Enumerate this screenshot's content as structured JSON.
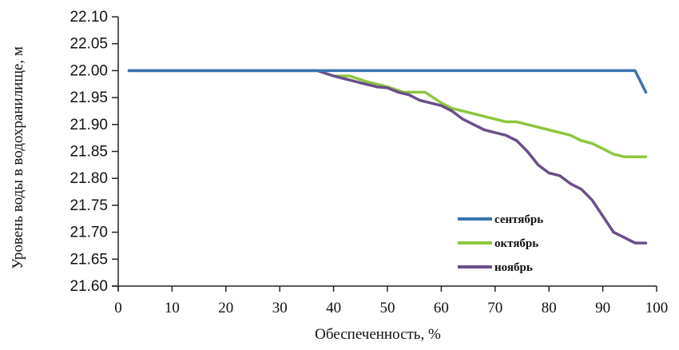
{
  "chart_data": {
    "type": "line",
    "title": "",
    "xlabel": "Обеспеченность, %",
    "ylabel": "Уровень воды в водохранилище, м",
    "xlim": [
      0,
      100
    ],
    "ylim": [
      21.6,
      22.1
    ],
    "x_ticks": [
      "0",
      "10",
      "20",
      "30",
      "40",
      "50",
      "60",
      "70",
      "80",
      "90",
      "100"
    ],
    "y_ticks": [
      "21.60",
      "21.65",
      "21.70",
      "21.75",
      "21.80",
      "21.85",
      "21.90",
      "21.95",
      "22.00",
      "22.05",
      "22.10"
    ],
    "grid": false,
    "legend_position": "right",
    "series": [
      {
        "name": "сентябрь",
        "color": "#3a74b0",
        "x": [
          2,
          96,
          98
        ],
        "y": [
          22.0,
          22.0,
          21.96
        ]
      },
      {
        "name": "октябрь",
        "color": "#8dc63f",
        "x": [
          2,
          37,
          40,
          43,
          46,
          50,
          53,
          57,
          60,
          62,
          64,
          66,
          68,
          70,
          72,
          74,
          76,
          78,
          80,
          82,
          84,
          86,
          88,
          90,
          92,
          94,
          96,
          98
        ],
        "y": [
          22.0,
          22.0,
          21.99,
          21.99,
          21.98,
          21.97,
          21.96,
          21.96,
          21.94,
          21.93,
          21.925,
          21.92,
          21.915,
          21.91,
          21.905,
          21.905,
          21.9,
          21.895,
          21.89,
          21.885,
          21.88,
          21.87,
          21.865,
          21.855,
          21.845,
          21.84,
          21.84,
          21.84
        ]
      },
      {
        "name": "ноябрь",
        "color": "#6a4f8a",
        "x": [
          2,
          37,
          40,
          42,
          44,
          46,
          48,
          50,
          52,
          54,
          56,
          58,
          60,
          62,
          64,
          66,
          68,
          70,
          72,
          74,
          76,
          78,
          80,
          82,
          84,
          86,
          88,
          90,
          92,
          94,
          96,
          98
        ],
        "y": [
          22.0,
          22.0,
          21.99,
          21.985,
          21.98,
          21.975,
          21.97,
          21.968,
          21.96,
          21.955,
          21.945,
          21.94,
          21.935,
          21.925,
          21.91,
          21.9,
          21.89,
          21.885,
          21.88,
          21.87,
          21.85,
          21.825,
          21.81,
          21.805,
          21.79,
          21.78,
          21.76,
          21.73,
          21.7,
          21.69,
          21.68,
          21.68
        ]
      }
    ]
  }
}
